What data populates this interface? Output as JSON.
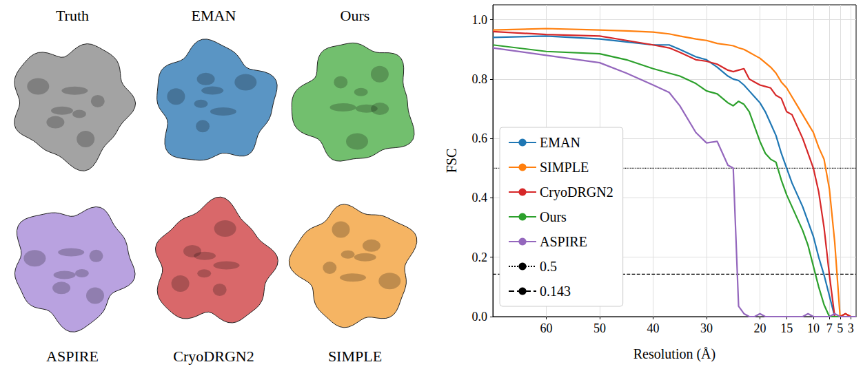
{
  "renders": {
    "top_row": [
      {
        "label": "Truth",
        "color": "#a3a3a3"
      },
      {
        "label": "EMAN",
        "color": "#5a95c4"
      },
      {
        "label": "Ours",
        "color": "#72bf6e"
      }
    ],
    "bottom_row": [
      {
        "label": "ASPIRE",
        "color": "#b9a2e0"
      },
      {
        "label": "CryoDRGN2",
        "color": "#d9686a"
      },
      {
        "label": "SIMPLE",
        "color": "#f5b463"
      }
    ]
  },
  "chart_data": {
    "type": "line",
    "x_label": "Resolution (Å)",
    "y_label": "FSC",
    "x": [
      70,
      60,
      50,
      45,
      40,
      37,
      35,
      32,
      30,
      28,
      26,
      25,
      24,
      23,
      22,
      21,
      20,
      19,
      18,
      17,
      16,
      15,
      14,
      13,
      12,
      11,
      10,
      9,
      8,
      7,
      6,
      5,
      4,
      3,
      2
    ],
    "series": [
      {
        "name": "EMAN",
        "color": "#1f77b4",
        "values": [
          0.94,
          0.945,
          0.935,
          0.925,
          0.915,
          0.915,
          0.9,
          0.875,
          0.865,
          0.84,
          0.81,
          0.8,
          0.795,
          0.78,
          0.76,
          0.74,
          0.72,
          0.69,
          0.65,
          0.61,
          0.55,
          0.5,
          0.45,
          0.41,
          0.37,
          0.32,
          0.27,
          0.2,
          0.14,
          0.07,
          0.0,
          0.0,
          0.0,
          0.0,
          0.0
        ]
      },
      {
        "name": "SIMPLE",
        "color": "#ff7f0e",
        "values": [
          0.965,
          0.97,
          0.965,
          0.962,
          0.958,
          0.952,
          0.945,
          0.935,
          0.93,
          0.92,
          0.915,
          0.912,
          0.905,
          0.9,
          0.89,
          0.88,
          0.87,
          0.855,
          0.84,
          0.82,
          0.79,
          0.77,
          0.74,
          0.71,
          0.68,
          0.65,
          0.62,
          0.57,
          0.53,
          0.43,
          0.25,
          0.0,
          0.01,
          0.0,
          0.0
        ]
      },
      {
        "name": "CryoDRGN2",
        "color": "#d62728",
        "values": [
          0.96,
          0.95,
          0.945,
          0.93,
          0.915,
          0.905,
          0.89,
          0.865,
          0.86,
          0.85,
          0.83,
          0.825,
          0.83,
          0.835,
          0.8,
          0.79,
          0.78,
          0.775,
          0.77,
          0.745,
          0.735,
          0.69,
          0.68,
          0.64,
          0.6,
          0.55,
          0.5,
          0.42,
          0.3,
          0.14,
          0.0,
          0.0,
          0.01,
          0.0,
          0.0
        ]
      },
      {
        "name": "Ours",
        "color": "#2ca02c",
        "values": [
          0.915,
          0.893,
          0.885,
          0.865,
          0.835,
          0.82,
          0.81,
          0.785,
          0.76,
          0.75,
          0.72,
          0.71,
          0.725,
          0.715,
          0.69,
          0.64,
          0.59,
          0.55,
          0.53,
          0.52,
          0.46,
          0.41,
          0.37,
          0.33,
          0.29,
          0.24,
          0.17,
          0.1,
          0.04,
          0.0,
          0.0,
          0.0,
          0.0,
          0.0,
          0.0
        ]
      },
      {
        "name": "ASPIRE",
        "color": "#9467bd",
        "values": [
          0.905,
          0.88,
          0.855,
          0.82,
          0.78,
          0.755,
          0.71,
          0.62,
          0.585,
          0.59,
          0.51,
          0.5,
          0.035,
          0.01,
          0.0,
          0.0,
          0.01,
          0.0,
          0.0,
          0.0,
          0.0,
          0.0,
          0.0,
          0.0,
          0.0,
          0.01,
          0.0,
          0.0,
          0.0,
          0.0,
          0.01,
          0.0,
          0.0,
          0.0,
          0.0
        ]
      }
    ],
    "reference_lines": [
      {
        "name": "0.5",
        "y": 0.5,
        "color": "#000000",
        "line_style": "dotted"
      },
      {
        "name": "0.143",
        "y": 0.143,
        "color": "#000000",
        "line_style": "dashed"
      }
    ],
    "xlim": [
      70,
      2
    ],
    "xticks": [
      60,
      50,
      40,
      30,
      20,
      15,
      10,
      7,
      5,
      3
    ],
    "ylim": [
      0,
      1.05
    ],
    "yticks": [
      {
        "value": 0,
        "label": "0.0"
      },
      0.2,
      0.4,
      0.6,
      0.8,
      {
        "value": 1,
        "label": "1.0"
      }
    ],
    "grid": true,
    "legend": "lower left"
  }
}
